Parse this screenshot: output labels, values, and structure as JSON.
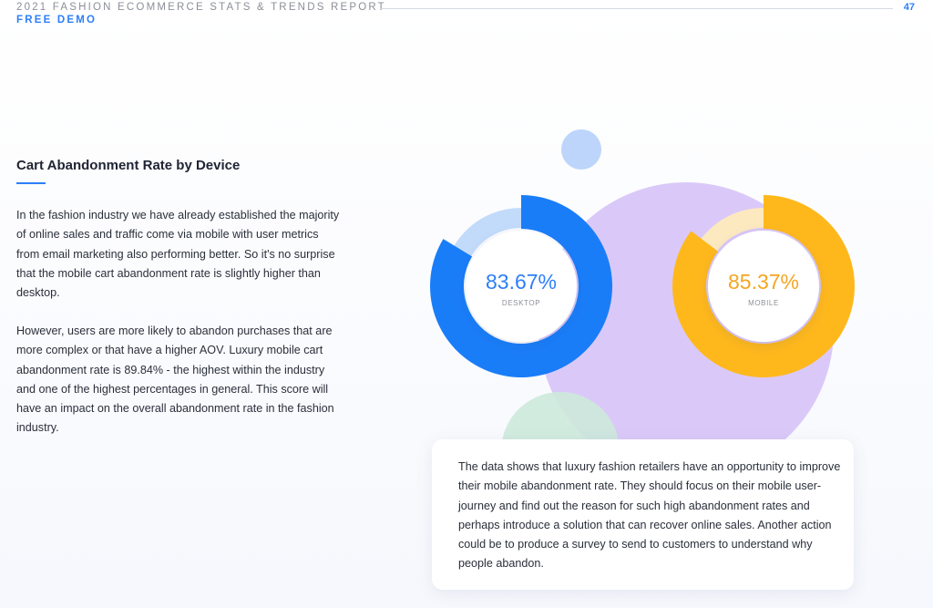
{
  "header": {
    "report_title": "2021 FASHION ECOMMERCE STATS & TRENDS REPORT",
    "free_demo": "FREE DEMO",
    "page_number": "47"
  },
  "section": {
    "title": "Cart Abandonment Rate by Device",
    "paragraph_1": "In the fashion industry we have already established the majority of online sales and traffic come via mobile with user metrics from email marketing also performing better. So it's no surprise that the mobile cart abandonment rate is slightly higher than desktop.",
    "paragraph_2": "However, users are more likely to abandon purchases that are more complex or that have a higher AOV. Luxury mobile cart abandonment rate is 89.84% - the highest within the industry and one of the highest percentages in general. This score will have an impact on the overall abandonment rate in the fashion industry."
  },
  "info_card": {
    "text": "The data shows that luxury fashion retailers have an opportunity to improve their mobile abandonment rate. They should focus on their mobile user-journey and find out the reason for such high abandonment rates and perhaps introduce a solution that can recover online sales. Another action could be to produce a survey to send to customers to understand why people abandon."
  },
  "colors": {
    "accent": "#2d7ff9",
    "desktop_fill": "#1a7df8",
    "desktop_track": "#c3dbfb",
    "mobile_fill": "#ffb81c",
    "mobile_track": "#fde9bf",
    "desktop_value_text": "#2d7ff9",
    "mobile_value_text": "#f5a623"
  },
  "chart_data": [
    {
      "type": "pie",
      "variant": "donut",
      "value": 83.67,
      "value_label": "83.67%",
      "category_label": "DESKTOP"
    },
    {
      "type": "pie",
      "variant": "donut",
      "value": 85.37,
      "value_label": "85.37%",
      "category_label": "MOBILE"
    }
  ]
}
